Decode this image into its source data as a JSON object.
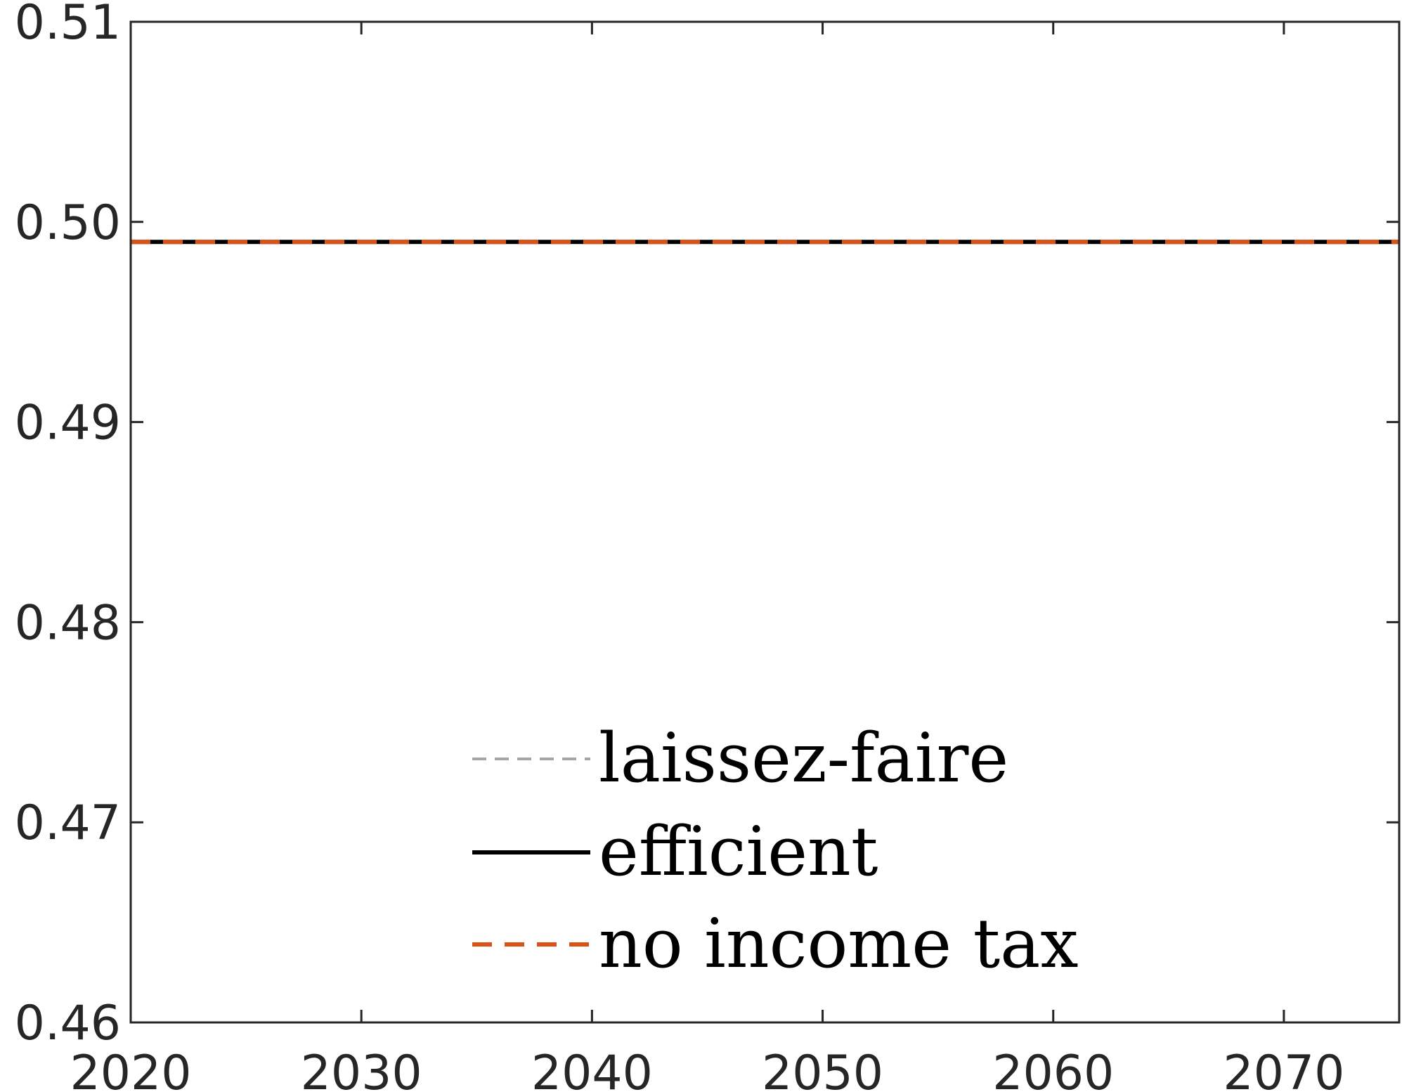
{
  "chart_data": {
    "type": "line",
    "title": "",
    "xlabel": "",
    "ylabel": "",
    "xlim": [
      2020,
      2075
    ],
    "ylim": [
      0.46,
      0.51
    ],
    "xticks": [
      "2020",
      "2030",
      "2040",
      "2050",
      "2060",
      "2070"
    ],
    "yticks": [
      "0.46",
      "0.47",
      "0.48",
      "0.49",
      "0.50",
      "0.51"
    ],
    "grid": false,
    "legend_position": "bottom-center",
    "series": [
      {
        "name": "laissez-faire",
        "color": "#a6a6a6",
        "style": "dashed",
        "x": [
          2020,
          2075
        ],
        "y": [
          0.499,
          0.499
        ]
      },
      {
        "name": "efficient",
        "color": "#000000",
        "style": "solid",
        "x": [
          2020,
          2075
        ],
        "y": [
          0.499,
          0.499
        ]
      },
      {
        "name": "no income tax",
        "color": "#d95319",
        "style": "dashed",
        "x": [
          2020,
          2075
        ],
        "y": [
          0.499,
          0.499
        ]
      }
    ]
  }
}
